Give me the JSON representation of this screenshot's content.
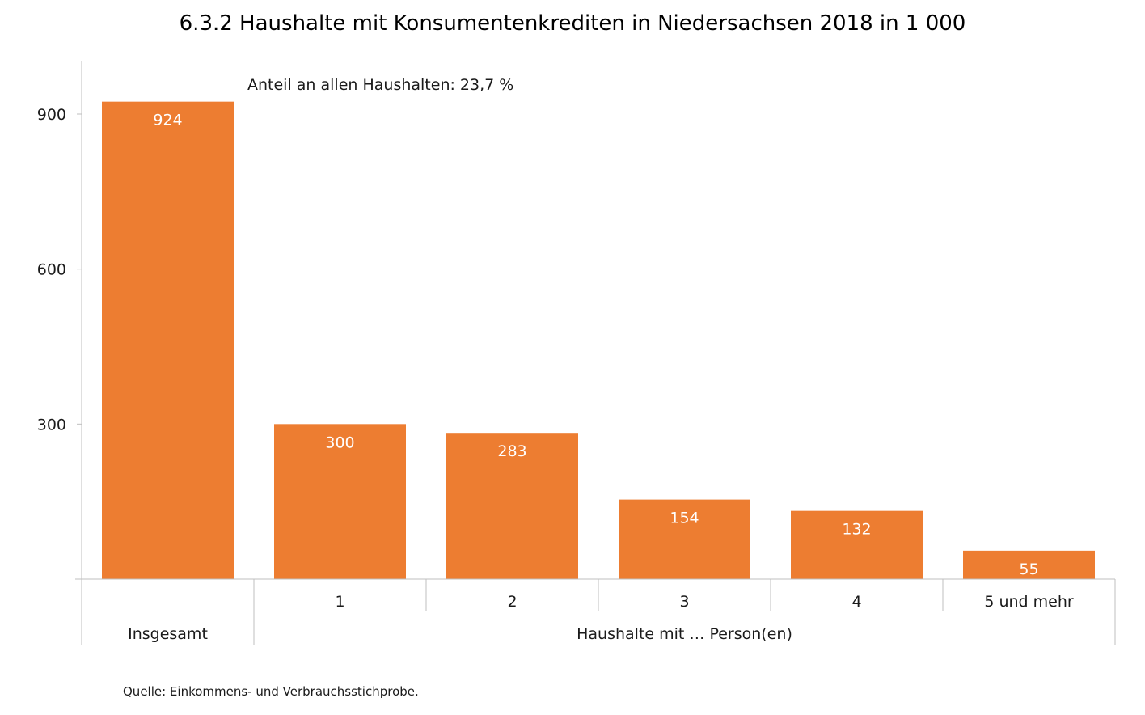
{
  "chart_data": {
    "type": "bar",
    "title": "6.3.2 Haushalte mit Konsumentenkrediten in Niedersachsen 2018 in 1 000",
    "categories": [
      "Insgesamt",
      "1",
      "2",
      "3",
      "4",
      "5 und mehr"
    ],
    "values": [
      924,
      300,
      283,
      154,
      132,
      55
    ],
    "group_label": "Haushalte mit … Person(en)",
    "annotation": "Anteil an allen Haushalten: 23,7 %",
    "yticks": [
      300,
      600,
      900
    ],
    "ytick_labels": [
      "300",
      "600",
      "900"
    ],
    "ylim": [
      0,
      1000
    ],
    "grid": false,
    "bar_color": "#ED7D31",
    "value_label_color": "#FFFFFF"
  },
  "footer": {
    "source": "Quelle: Einkommens- und Verbrauchsstichprobe."
  }
}
